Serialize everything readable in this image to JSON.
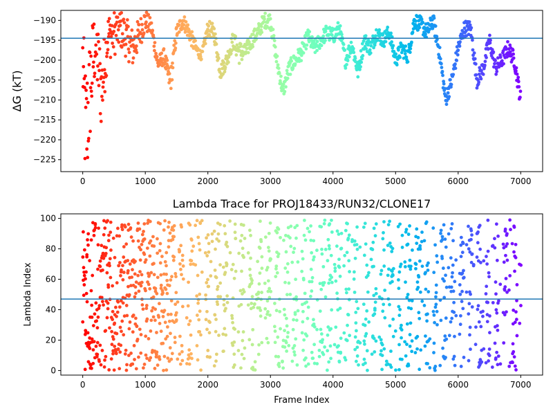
{
  "chart_data": [
    {
      "type": "scatter",
      "title": "",
      "xlabel": "",
      "ylabel": "ΔG (kT)",
      "xlim": [
        -350,
        7350
      ],
      "ylim": [
        -228,
        -187.5
      ],
      "x_ticks": [
        0,
        1000,
        2000,
        3000,
        4000,
        5000,
        6000,
        7000
      ],
      "x_tick_labels": [
        "0",
        "1000",
        "2000",
        "3000",
        "4000",
        "5000",
        "6000",
        "7000"
      ],
      "y_ticks": [
        -225,
        -220,
        -215,
        -210,
        -205,
        -200,
        -195,
        -190
      ],
      "y_tick_labels": [
        "−225",
        "−220",
        "−215",
        "−210",
        "−205",
        "−200",
        "−195",
        "−190"
      ],
      "hline": -194.5,
      "hline_color": "#1f77b4",
      "colormap": "rainbow (red at frame 0 → violet at frame 7000)",
      "x_range": [
        0,
        7000
      ],
      "grid": false,
      "series": [
        {
          "x": [
            0,
            50,
            100,
            200,
            300,
            400,
            500,
            600,
            800,
            1000,
            1100,
            1200,
            1300,
            1400,
            1500,
            1600,
            1700,
            1800,
            1900,
            2000,
            2100,
            2200,
            2300,
            2400,
            2500,
            2600,
            2700,
            2800,
            2900,
            3000,
            3100,
            3200,
            3300,
            3400,
            3500,
            3600,
            3700,
            3800,
            3900,
            4000,
            4100,
            4200,
            4300,
            4400,
            4500,
            4600,
            4700,
            4800,
            4900,
            5000,
            5100,
            5200,
            5300,
            5400,
            5500,
            5600,
            5700,
            5800,
            5900,
            6000,
            6100,
            6200,
            6300,
            6400,
            6500,
            6600,
            6700,
            6800,
            6900,
            7000
          ],
          "y": [
            -200,
            -220,
            -210,
            -195,
            -208,
            -194,
            -193,
            -192,
            -197,
            -190,
            -192,
            -201,
            -199,
            -206,
            -193,
            -190,
            -193,
            -197,
            -199,
            -192,
            -193,
            -203,
            -200,
            -195,
            -198,
            -198,
            -195,
            -193,
            -190,
            -190,
            -200,
            -208,
            -202,
            -200,
            -198,
            -194,
            -197,
            -195,
            -193,
            -194,
            -192,
            -200,
            -196,
            -203,
            -195,
            -197,
            -193,
            -195,
            -193,
            -200,
            -197,
            -199,
            -190,
            -191,
            -193,
            -190,
            -198,
            -210,
            -205,
            -197,
            -192,
            -192,
            -205,
            -202,
            -195,
            -202,
            -200,
            -197,
            -200,
            -210
          ],
          "y_spread": [
            10,
            18,
            15,
            10,
            10,
            6,
            6,
            5,
            5,
            3,
            2,
            2,
            2,
            3,
            2,
            2,
            2,
            2,
            1,
            2,
            2,
            2,
            2,
            2,
            3,
            2,
            2,
            2,
            2,
            2,
            2,
            2,
            2,
            2,
            2,
            2,
            2,
            2,
            2,
            2,
            2,
            2,
            2,
            2,
            2,
            2,
            2,
            2,
            2,
            2,
            2,
            2,
            2,
            2,
            2,
            2,
            2,
            2,
            2,
            2,
            2,
            2,
            2,
            2,
            2,
            2,
            2,
            2,
            2,
            2
          ]
        }
      ]
    },
    {
      "type": "scatter",
      "title": "Lambda Trace for PROJ18433/RUN32/CLONE17",
      "xlabel": "Frame Index",
      "ylabel": "Lambda Index",
      "xlim": [
        -350,
        7350
      ],
      "ylim": [
        -3,
        103
      ],
      "x_ticks": [
        0,
        1000,
        2000,
        3000,
        4000,
        5000,
        6000,
        7000
      ],
      "x_tick_labels": [
        "0",
        "1000",
        "2000",
        "3000",
        "4000",
        "5000",
        "6000",
        "7000"
      ],
      "y_ticks": [
        0,
        20,
        40,
        60,
        80,
        100
      ],
      "y_tick_labels": [
        "0",
        "20",
        "40",
        "60",
        "80",
        "100"
      ],
      "hline": 47,
      "hline_color": "#1f77b4",
      "colormap": "rainbow (red at frame 0 → violet at frame 7000)",
      "x_range": [
        0,
        7000
      ],
      "y_range": [
        0,
        99
      ],
      "grid": false
    }
  ]
}
